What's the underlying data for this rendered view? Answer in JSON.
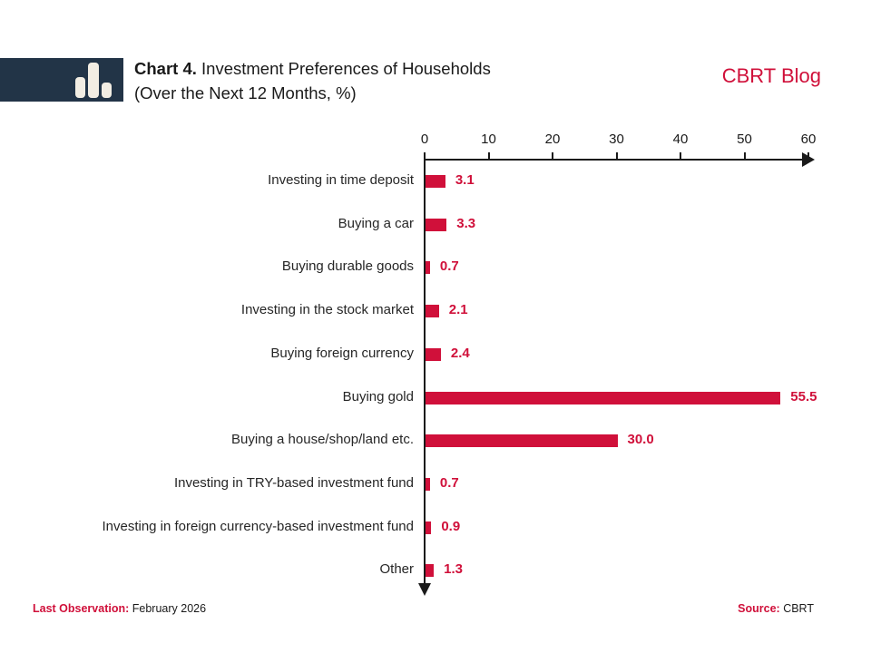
{
  "header": {
    "chart_label": "Chart 4.",
    "title": "Investment Preferences of Households",
    "subtitle": "(Over the Next 12 Months, %)",
    "brand": "CBRT Blog",
    "logo_icon": "bar-chart-icon"
  },
  "chart_data": {
    "type": "bar",
    "orientation": "horizontal",
    "title": "Investment Preferences of Households (Over the Next 12 Months, %)",
    "categories": [
      "Investing in time deposit",
      "Buying a car",
      "Buying durable goods",
      "Investing in the stock market",
      "Buying foreign currency",
      "Buying gold",
      "Buying a house/shop/land etc.",
      "Investing in TRY-based investment fund",
      "Investing in foreign currency-based investment fund",
      "Other"
    ],
    "values": [
      3.1,
      3.3,
      0.7,
      2.1,
      2.4,
      55.5,
      30.0,
      0.7,
      0.9,
      1.3
    ],
    "value_labels": [
      "3.1",
      "3.3",
      "0.7",
      "2.1",
      "2.4",
      "55.5",
      "30.0",
      "0.7",
      "0.9",
      "1.3"
    ],
    "x_ticks": [
      0,
      10,
      20,
      30,
      40,
      50,
      60
    ],
    "xlim": [
      0,
      60
    ],
    "grid": false,
    "legend": "none",
    "bar_color": "#d0103a"
  },
  "footer": {
    "last_observation_label": "Last Observation:",
    "last_observation_value": "February 2026",
    "source_label": "Source:",
    "source_value": "CBRT"
  },
  "colors": {
    "accent": "#d0103a",
    "navy": "#223447",
    "axis": "#1a1a1a"
  }
}
